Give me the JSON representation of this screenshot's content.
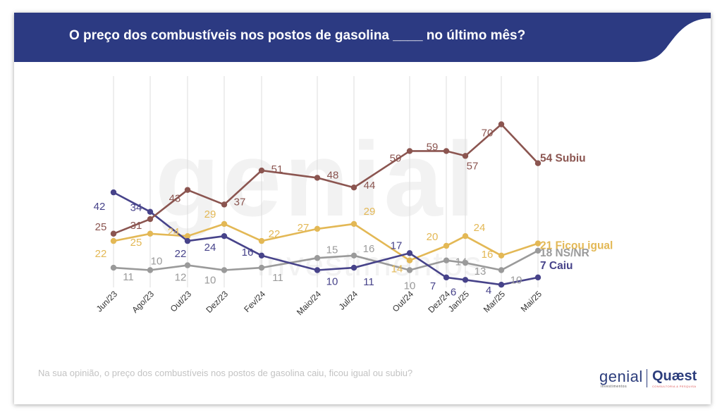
{
  "header": {
    "title": "O preço dos combustíveis nos postos de gasolina ____ no último mês?"
  },
  "footer": {
    "question": "Na sua opinião, o preço dos combustíveis nos postos de gasolina caiu, ficou igual ou subiu?"
  },
  "logos": {
    "genial_name": "genial",
    "genial_sub": "investimentos",
    "quaest_name": "Quæst",
    "quaest_sub": "CONSULTORIA & PESQUISA"
  },
  "watermark": {
    "big": "genial",
    "small": "investimentos"
  },
  "colors": {
    "banner": "#2c3a82",
    "subiu": "#8b5550",
    "ficou_igual": "#e3b855",
    "ns_nr": "#9a9a9a",
    "caiu": "#47438a",
    "grid": "#dcdcdc"
  },
  "chart_data": {
    "type": "line",
    "x": [
      "Jun/23",
      "Ago/23",
      "Out/23",
      "Dez/23",
      "Fev/24",
      "Maio/24",
      "Jul/24",
      "Out/24",
      "Dez/24",
      "Jan/25",
      "Mar/25",
      "Mai/25"
    ],
    "xlabel": "",
    "ylabel": "",
    "ylim": [
      0,
      75
    ],
    "grid": "vertical",
    "legend": "end-of-line labels",
    "series": [
      {
        "name": "Subiu",
        "end_label": "54 Subiu",
        "color_key": "subiu",
        "values": [
          25,
          31,
          43,
          37,
          51,
          48,
          44,
          59,
          59,
          57,
          70,
          54
        ]
      },
      {
        "name": "Ficou igual",
        "end_label": "21 Ficou igual",
        "color_key": "ficou_igual",
        "values": [
          22,
          25,
          24,
          29,
          22,
          27,
          29,
          14,
          20,
          24,
          16,
          21
        ]
      },
      {
        "name": "NS/NR",
        "end_label": "18 NS/NR",
        "color_key": "ns_nr",
        "values": [
          11,
          10,
          12,
          10,
          11,
          15,
          16,
          10,
          14,
          13,
          10,
          18
        ]
      },
      {
        "name": "Caiu",
        "end_label": "7 Caiu",
        "color_key": "caiu",
        "values": [
          42,
          34,
          22,
          24,
          16,
          10,
          11,
          17,
          7,
          6,
          4,
          7
        ]
      }
    ]
  }
}
